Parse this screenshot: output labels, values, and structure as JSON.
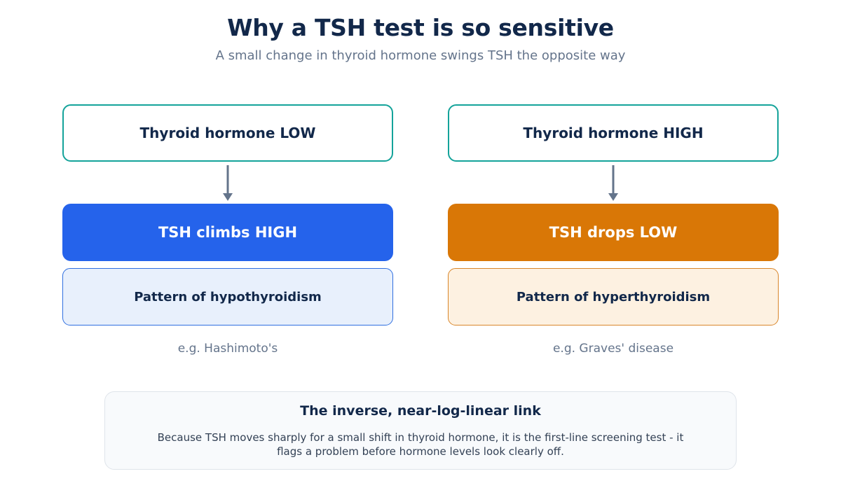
{
  "header": {
    "title": "Why a TSH test is so sensitive",
    "subtitle": "A small change in thyroid hormone swings TSH the opposite way"
  },
  "columns": [
    {
      "cause": "Thyroid hormone LOW",
      "effect": "TSH climbs HIGH",
      "pattern": "Pattern of hypothyroidism",
      "example": "e.g. Hashimoto's",
      "effect_color": "#2563eb"
    },
    {
      "cause": "Thyroid hormone HIGH",
      "effect": "TSH drops LOW",
      "pattern": "Pattern of hyperthyroidism",
      "example": "e.g. Graves' disease",
      "effect_color": "#d97706"
    }
  ],
  "note": {
    "title": "The inverse, near-log-linear link",
    "body": "Because TSH moves sharply for a small shift in thyroid hormone, it is the first-line screening test - it flags a problem before hormone levels look clearly off."
  },
  "colors": {
    "cause_border": "#14a39a",
    "arrow": "#64748b",
    "text_dark": "#12284a"
  }
}
